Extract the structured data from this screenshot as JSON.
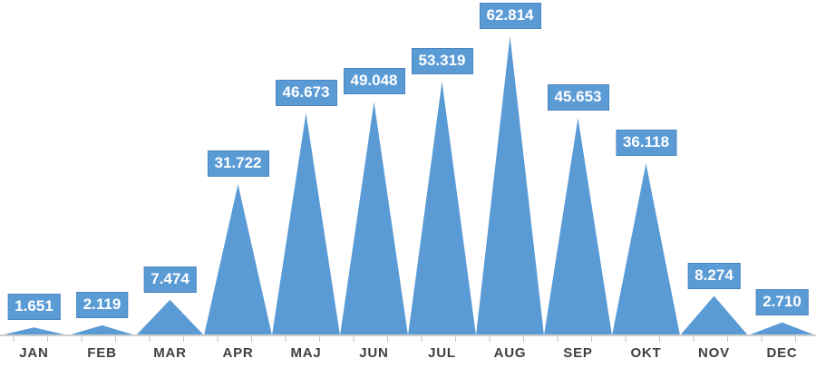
{
  "chart_data": {
    "type": "area",
    "variant": "triangular-peaks-per-category",
    "title": "",
    "xlabel": "",
    "ylabel": "",
    "categories": [
      "JAN",
      "FEB",
      "MAR",
      "APR",
      "MAJ",
      "JUN",
      "JUL",
      "AUG",
      "SEP",
      "OKT",
      "NOV",
      "DEC"
    ],
    "values": [
      1651,
      2119,
      7474,
      31722,
      46673,
      49048,
      53319,
      62814,
      45653,
      36118,
      8274,
      2710
    ],
    "value_labels": [
      "1.651",
      "2.119",
      "7.474",
      "31.722",
      "46.673",
      "49.048",
      "53.319",
      "62.814",
      "45.653",
      "36.118",
      "8.274",
      "2.710"
    ],
    "ylim": [
      0,
      62814
    ],
    "grid": false,
    "legend": false,
    "data_labels": "boxed above each peak",
    "colors": {
      "series_fill": "#5b9bd5",
      "label_bg": "#5b9bd5",
      "label_border": "#4d86c0",
      "label_text": "#ffffff",
      "axis_line": "#cdcdcd",
      "tick": "#c6c6c6",
      "category_text": "#404040",
      "background": "#ffffff"
    }
  }
}
